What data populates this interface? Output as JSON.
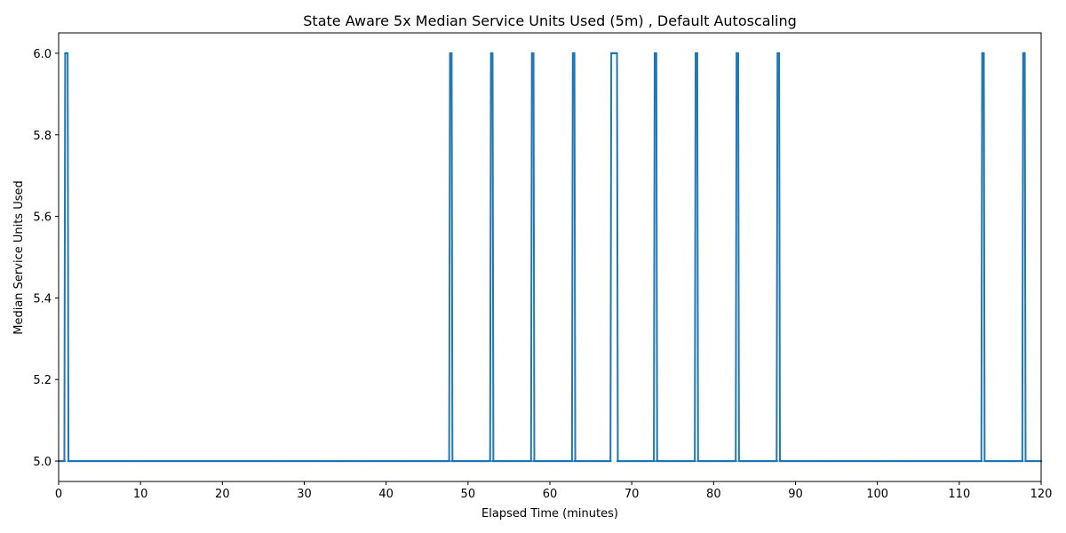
{
  "chart_data": {
    "type": "line",
    "title": "State Aware 5x Median Service Units Used (5m) , Default Autoscaling",
    "xlabel": "Elapsed Time (minutes)",
    "ylabel": "Median Service Units Used",
    "xlim": [
      0,
      120
    ],
    "ylim": [
      4.95,
      6.05
    ],
    "grid": false,
    "xticks": [
      0,
      10,
      20,
      30,
      40,
      50,
      60,
      70,
      80,
      90,
      100,
      110,
      120
    ],
    "yticks": [
      5.0,
      5.2,
      5.4,
      5.6,
      5.8,
      6.0
    ],
    "ytick_labels": [
      "5.0",
      "5.2",
      "5.4",
      "5.6",
      "5.8",
      "6.0"
    ],
    "marker": "dot",
    "colors": {
      "series": "#1f77b4"
    },
    "baseline": 5.0,
    "peak": 6.0,
    "spikes": [
      [
        0.8,
        1.1
      ],
      [
        47.8,
        48.0
      ],
      [
        52.8,
        53.0
      ],
      [
        57.8,
        58.0
      ],
      [
        62.8,
        63.0
      ],
      [
        67.5,
        68.2
      ],
      [
        72.8,
        73.0
      ],
      [
        77.8,
        78.0
      ],
      [
        82.8,
        83.0
      ],
      [
        87.8,
        88.0
      ],
      [
        112.8,
        113.0
      ],
      [
        117.8,
        118.0
      ]
    ]
  }
}
